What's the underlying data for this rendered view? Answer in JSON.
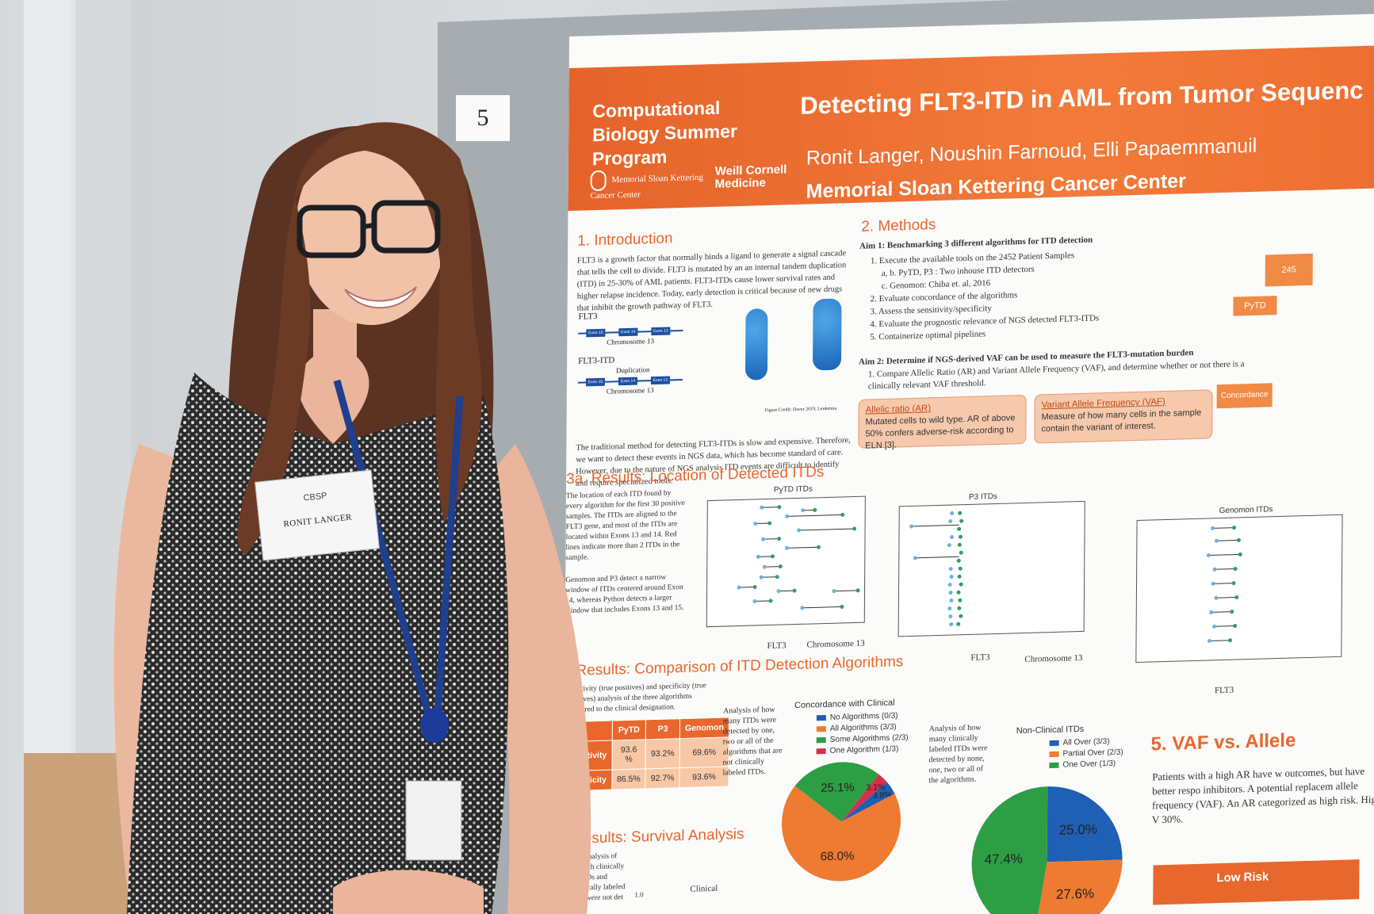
{
  "board": {
    "number": "5"
  },
  "poster": {
    "program": "Computational Biology Summer Program",
    "title": "Detecting FLT3-ITD in AML from Tumor Sequenc",
    "authors": "Ronit Langer, Noushin Farnoud,  Elli Papaemmanuil",
    "institution": "Memorial Sloan Kettering Cancer Center",
    "logo_mskcc": "Memorial Sloan Kettering Cancer Center",
    "logo_weill": "Weill Cornell Medicine",
    "intro": {
      "heading": "1. Introduction",
      "text": "FLT3 is a growth factor that normally binds a ligand to generate a signal cascade that tells the cell to divide. FLT3 is mutated by an an internal tandem duplication (ITD) in 25-30% of AML patients. FLT3-ITDs cause lower survival rates and higher relapse incidence. Today, early detection is critical because of new drugs that inhibit the growth pathway of FLT3.",
      "gene1": "FLT3",
      "gene2": "FLT3-ITD",
      "duplication": "Duplication",
      "chromosome": "Chromosome 13",
      "exon15": "Exon 15",
      "exon14": "Exon 14",
      "exon13": "Exon 13",
      "fig_credit": "Figure Credit: Daver 2019, Leukemia",
      "text2": "The traditional method for detecting FLT3-ITDs is slow and expensive. Therefore, we want to detect these events in NGS data, which has become standard of care. However, due to the nature of NGS analysis ITD events are difficult to identify and require specialized tools."
    },
    "methods": {
      "heading": "2. Methods",
      "aim1": "Aim 1: Benchmarking 3 different algorithms for ITD detection",
      "items": [
        "1. Execute the available tools on the 2452 Patient Samples",
        "a, b. PyTD, P3 : Two inhouse ITD detectors",
        "c. Genomon: Chiba et. al, 2016",
        "2. Evaluate concordance of the algorithms",
        "3. Assess the sensitivity/specificity",
        "4. Evaluate the prognostic relevance of NGS detected FLT3-ITDs",
        "5. Containerize optimal pipelines"
      ],
      "aim2": "Aim 2: Determine if NGS-derived VAF can be used to measure the FLT3-mutation burden",
      "aim2_text": "1. Compare Allelic Ratio (AR)  and Variant Allele Frequency (VAF), and determine whether or not there is a clinically relevant VAF threshold.",
      "box1_title": "Allelic ratio (AR)",
      "box1_text": "Mutated cells to wild type. AR of above 50% confers adverse-risk according to ELN [3].",
      "box2_title": "Variant Allele Frequency (VAF)",
      "box2_text": "Measure of how many cells in the sample contain the variant of interest."
    },
    "flow": {
      "top": "245",
      "pytd": "PyTD",
      "concordance": "Concordance"
    },
    "results3a": {
      "heading": "3a. Results: Location of Detected ITDs",
      "text": "The location of each ITD found by every algorithm for the first 30 positive samples. The ITDs are aligned to the FLT3 gene, and most of the ITDs are located within Exons 13 and 14. Red lines indicate more than 2 ITDs in the sample.",
      "text2": "Genomon and P3 detect a narrow window of ITDs centered around Exon 14, whereas Python detects a larger window that includes Exons 13 and 15.",
      "plot1": "PyTD ITDs",
      "plot2": "P3 ITDs",
      "plot3": "Genomon ITDs",
      "xlabel_gene": "FLT3",
      "xlabel_chrom": "Chromosome 13"
    },
    "results3b": {
      "heading": "Results: Comparison of ITD Detection Algorithms",
      "text": "Sensitivity (true positives) and specificity (true negatives) analysis of the three algorithms compared to the clinical designation.",
      "table": {
        "cols": [
          "PyTD",
          "P3",
          "Genomon"
        ],
        "rows": [
          {
            "label": "Sensitivity",
            "values": [
              "93.6 %",
              "93.2%",
              "69.6%"
            ]
          },
          {
            "label": "Specificity",
            "values": [
              "86.5%",
              "92.7%",
              "93.6%"
            ]
          }
        ]
      },
      "pie1_caption": "Analysis of how many ITDs were detected by one, two or all of the algorithms that are not clinically labeled ITDs.",
      "pie1_title": "Concordance with Clinical",
      "pie1_legend": [
        "No Algorithms (0/3)",
        "All Algorithms (3/3)",
        "Some Algorithms (2/3)",
        "One Algorithm (1/3)"
      ],
      "pie2_caption": "Analysis of how many clinically labeled ITDs were detected by none, one, two or all of the algorithms.",
      "pie2_title": "Non-Clinical ITDs",
      "pie2_legend": [
        "All Over (3/3)",
        "Partial Over (2/3)",
        "One Over (1/3)"
      ]
    },
    "results4": {
      "heading": "4. Results: Survival Analysis",
      "text": "Survival Analysis of patients with clinically labeled ITDs and algorithmically labeled ITDs that were not det",
      "clinical": "Clinical",
      "tick": "1.0"
    },
    "results5": {
      "heading": "5. VAF vs. Allele",
      "text": "Patients with a high AR have w outcomes, but have better respo inhibitors. A potential replacem allele frequency (VAF). An AR categorized as high risk. High V 30%.",
      "low_risk": "Low Risk"
    }
  },
  "chart_data": [
    {
      "type": "pie",
      "title": "Concordance with Clinical",
      "labels": [
        "No Algorithms (0/3)",
        "All Algorithms (3/3)",
        "Some Algorithms (2/3)",
        "One Algorithm (1/3)"
      ],
      "values": [
        3.8,
        68.0,
        25.1,
        3.1
      ],
      "value_labels": [
        "3.8%",
        "68.0%",
        "25.1%",
        "3.1%"
      ],
      "colors": [
        "#1f5fb5",
        "#ef7a31",
        "#2e9e45",
        "#d4304a"
      ]
    },
    {
      "type": "pie",
      "title": "Non-Clinical ITDs",
      "labels": [
        "All Over (3/3)",
        "Partial Over (2/3)",
        "One Over (1/3)"
      ],
      "values": [
        25.0,
        27.6,
        47.4
      ],
      "value_labels": [
        "25.0%",
        "27.6%",
        "47.4%"
      ],
      "colors": [
        "#1f5fb5",
        "#ef7a31",
        "#2e9e45"
      ]
    }
  ],
  "badge": {
    "org": "CBSP",
    "name": "RONIT LANGER"
  }
}
